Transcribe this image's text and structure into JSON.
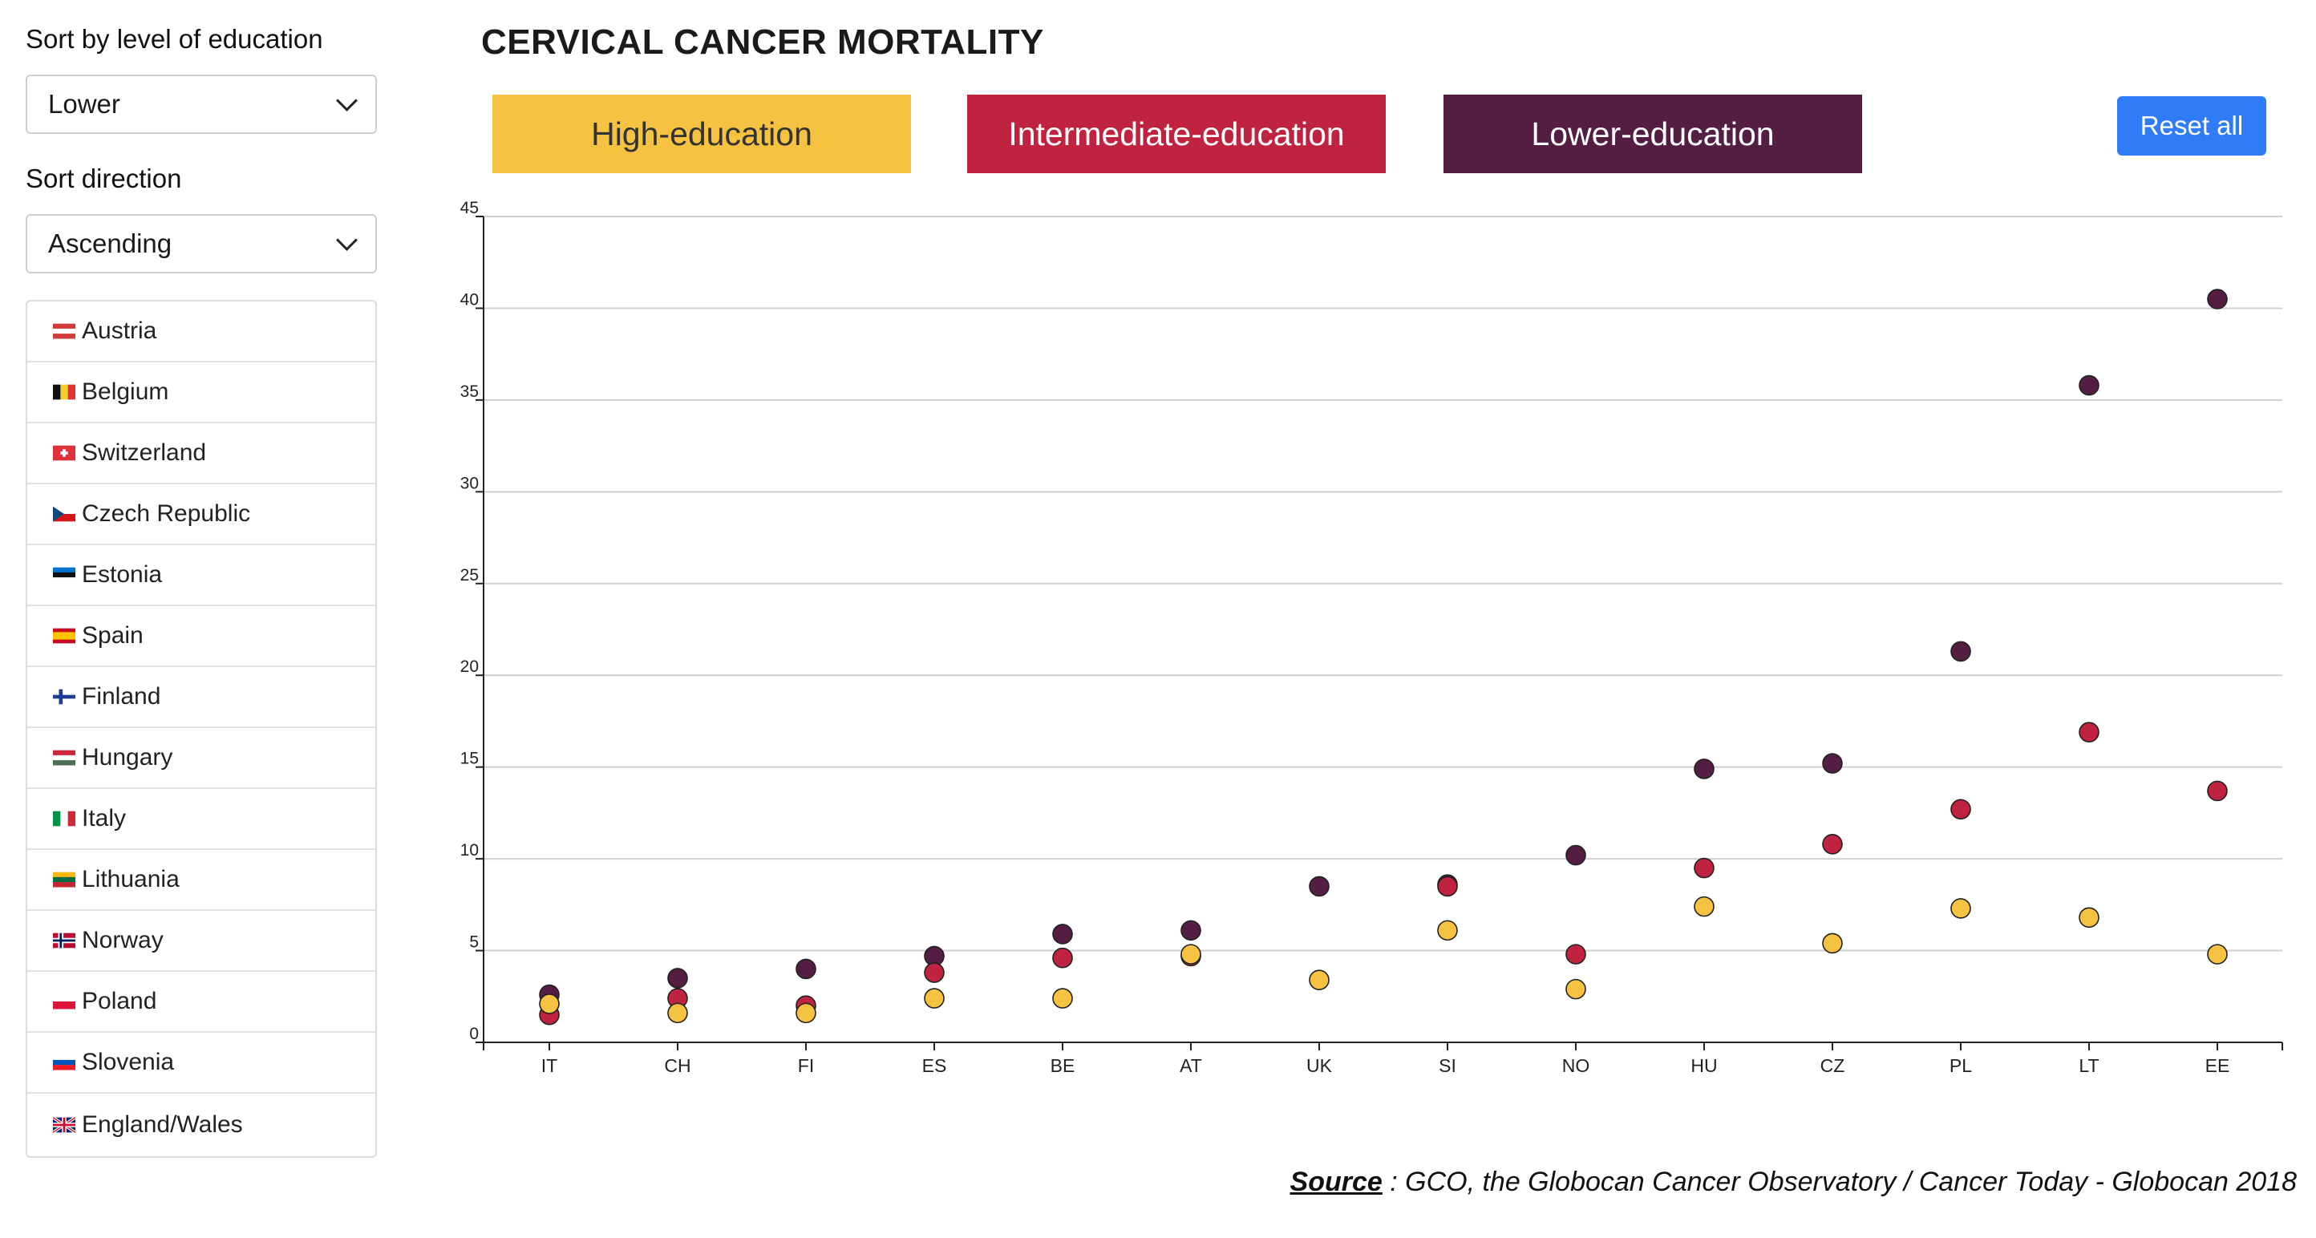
{
  "sidebar": {
    "sort_level_label": "Sort by level of education",
    "sort_level_value": "Lower",
    "sort_direction_label": "Sort direction",
    "sort_direction_value": "Ascending",
    "countries": [
      {
        "name": "Austria",
        "flag": [
          "#d43c3c",
          "#ffffff",
          "#d43c3c"
        ],
        "dir": "h"
      },
      {
        "name": "Belgium",
        "flag": [
          "#111111",
          "#f5cf2a",
          "#e0323a"
        ],
        "dir": "v"
      },
      {
        "name": "Switzerland",
        "flag": [
          "#e0323a"
        ],
        "dir": "cross"
      },
      {
        "name": "Czech Republic",
        "flag": [
          "#ffffff",
          "#d7141a",
          "#11457e"
        ],
        "dir": "cz"
      },
      {
        "name": "Estonia",
        "flag": [
          "#0072ce",
          "#111111",
          "#ffffff"
        ],
        "dir": "h"
      },
      {
        "name": "Spain",
        "flag": [
          "#c60b1e",
          "#ffc400",
          "#c60b1e"
        ],
        "dir": "es"
      },
      {
        "name": "Finland",
        "flag": [
          "#ffffff",
          "#1c3f94"
        ],
        "dir": "nordic"
      },
      {
        "name": "Hungary",
        "flag": [
          "#ce2939",
          "#ffffff",
          "#477050"
        ],
        "dir": "h"
      },
      {
        "name": "Italy",
        "flag": [
          "#009246",
          "#ffffff",
          "#ce2b37"
        ],
        "dir": "v"
      },
      {
        "name": "Lithuania",
        "flag": [
          "#fdb913",
          "#006a44",
          "#c1272d"
        ],
        "dir": "h"
      },
      {
        "name": "Norway",
        "flag": [
          "#ba0c2f",
          "#00205b"
        ],
        "dir": "nordic2"
      },
      {
        "name": "Poland",
        "flag": [
          "#ffffff",
          "#dc143c"
        ],
        "dir": "h"
      },
      {
        "name": "Slovenia",
        "flag": [
          "#ffffff",
          "#0057b8",
          "#ed1c24"
        ],
        "dir": "h"
      },
      {
        "name": "England/Wales",
        "flag": [
          "#012169",
          "#ffffff",
          "#c8102e"
        ],
        "dir": "uk"
      }
    ]
  },
  "header": {
    "title": "CERVICAL CANCER MORTALITY",
    "reset_label": "Reset all"
  },
  "legend": [
    {
      "label": "High-education",
      "color": "#f5c242",
      "text_color": "#333333"
    },
    {
      "label": "Intermediate-education",
      "color": "#c0233f",
      "text_color": "#ffffff"
    },
    {
      "label": "Lower-education",
      "color": "#531e42",
      "text_color": "#ffffff"
    }
  ],
  "source": {
    "prefix": "Source",
    "text": " : GCO, the Globocan Cancer Observatory / Cancer Today - Globocan 2018"
  },
  "chart_data": {
    "type": "scatter",
    "title": "CERVICAL CANCER MORTALITY",
    "xlabel": "",
    "ylabel": "",
    "categories": [
      "IT",
      "CH",
      "FI",
      "ES",
      "BE",
      "AT",
      "UK",
      "SI",
      "NO",
      "HU",
      "CZ",
      "PL",
      "LT",
      "EE"
    ],
    "ylim": [
      0,
      45
    ],
    "yticks": [
      0,
      5,
      10,
      15,
      20,
      25,
      30,
      35,
      40,
      45
    ],
    "grid": true,
    "series": [
      {
        "name": "Lower-education",
        "color": "#531e42",
        "values": [
          2.6,
          3.5,
          4.0,
          4.7,
          5.9,
          6.1,
          8.5,
          8.6,
          10.2,
          14.9,
          15.2,
          21.3,
          35.8,
          40.5
        ]
      },
      {
        "name": "Intermediate-education",
        "color": "#c0233f",
        "values": [
          1.5,
          2.4,
          2.0,
          3.8,
          4.6,
          4.7,
          null,
          8.5,
          4.8,
          9.5,
          10.8,
          12.7,
          16.9,
          13.7
        ]
      },
      {
        "name": "High-education",
        "color": "#f5c242",
        "values": [
          2.1,
          1.6,
          1.6,
          2.4,
          2.4,
          4.8,
          3.4,
          6.1,
          2.9,
          7.4,
          5.4,
          7.3,
          6.8,
          4.8
        ]
      }
    ]
  }
}
